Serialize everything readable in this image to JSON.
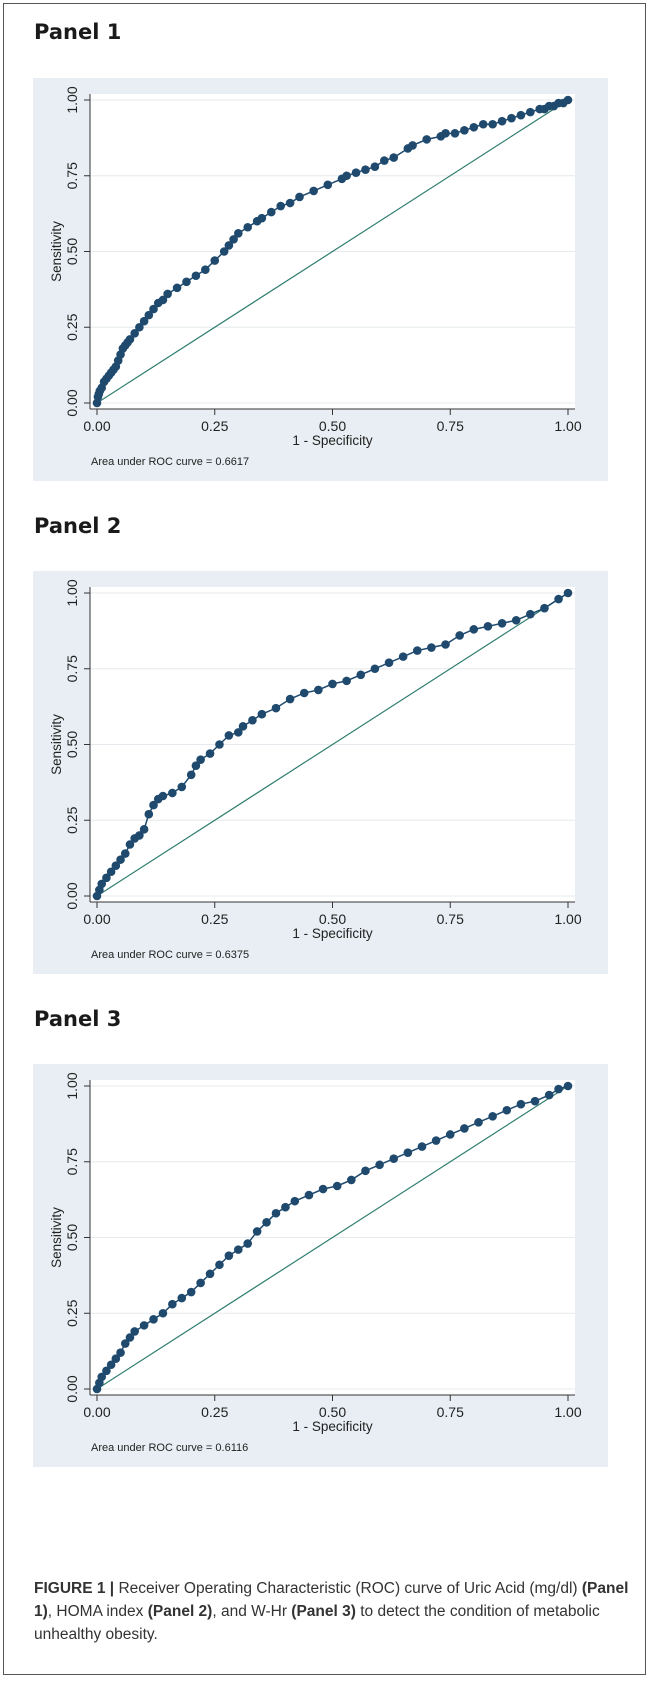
{
  "panels": [
    {
      "title": "Panel 1",
      "auc_label": "Area under ROC curve = 0.6617"
    },
    {
      "title": "Panel 2",
      "auc_label": "Area under ROC curve = 0.6375"
    },
    {
      "title": "Panel 3",
      "auc_label": "Area under ROC curve = 0.6116"
    }
  ],
  "caption": {
    "figure_label": "FIGURE 1 |",
    "text_1": " Receiver Operating Characteristic (ROC) curve of Uric Acid (mg/dl) ",
    "panel1": "(Panel 1)",
    "text_2": ", HOMA index ",
    "panel2": "(Panel 2)",
    "text_3": ", and W-Hr ",
    "panel3": "(Panel 3)",
    "text_4": " to detect the condition of metabolic unhealthy obesity."
  },
  "colors": {
    "curve": "#1f4a6e",
    "reference_line": "#2e7d6e",
    "plot_background": "#ffffff",
    "outer_background": "#e8eef3",
    "grid": "#e6eaee"
  },
  "chart_data": [
    {
      "type": "line",
      "xlabel": "1 - Specificity",
      "ylabel": "Sensitivity",
      "xlim": [
        0,
        1
      ],
      "ylim": [
        0,
        1
      ],
      "xticks": [
        "0.00",
        "0.25",
        "0.50",
        "0.75",
        "1.00"
      ],
      "yticks": [
        "0.00",
        "0.25",
        "0.50",
        "0.75",
        "1.00"
      ],
      "grid": true,
      "markers": true,
      "reference_line": true,
      "auc": 0.6617,
      "x": [
        0,
        0.002,
        0.004,
        0.006,
        0.01,
        0.015,
        0.02,
        0.025,
        0.03,
        0.035,
        0.04,
        0.045,
        0.05,
        0.055,
        0.06,
        0.065,
        0.07,
        0.08,
        0.09,
        0.1,
        0.11,
        0.12,
        0.13,
        0.14,
        0.15,
        0.17,
        0.19,
        0.21,
        0.23,
        0.25,
        0.27,
        0.28,
        0.29,
        0.3,
        0.32,
        0.34,
        0.35,
        0.37,
        0.39,
        0.41,
        0.43,
        0.46,
        0.49,
        0.52,
        0.53,
        0.55,
        0.57,
        0.59,
        0.61,
        0.63,
        0.66,
        0.67,
        0.7,
        0.73,
        0.74,
        0.76,
        0.78,
        0.8,
        0.82,
        0.84,
        0.86,
        0.88,
        0.9,
        0.92,
        0.94,
        0.95,
        0.96,
        0.97,
        0.98,
        0.99,
        1
      ],
      "y": [
        0,
        0.02,
        0.03,
        0.04,
        0.05,
        0.07,
        0.08,
        0.09,
        0.1,
        0.11,
        0.12,
        0.14,
        0.16,
        0.18,
        0.19,
        0.2,
        0.21,
        0.23,
        0.25,
        0.27,
        0.29,
        0.31,
        0.33,
        0.34,
        0.36,
        0.38,
        0.4,
        0.42,
        0.44,
        0.47,
        0.5,
        0.52,
        0.54,
        0.56,
        0.58,
        0.6,
        0.61,
        0.63,
        0.65,
        0.66,
        0.68,
        0.7,
        0.72,
        0.74,
        0.75,
        0.76,
        0.77,
        0.78,
        0.8,
        0.81,
        0.84,
        0.85,
        0.87,
        0.88,
        0.89,
        0.89,
        0.9,
        0.91,
        0.92,
        0.92,
        0.93,
        0.94,
        0.95,
        0.96,
        0.97,
        0.97,
        0.98,
        0.98,
        0.99,
        0.99,
        1
      ]
    },
    {
      "type": "line",
      "xlabel": "1 - Specificity",
      "ylabel": "Sensitivity",
      "xlim": [
        0,
        1
      ],
      "ylim": [
        0,
        1
      ],
      "xticks": [
        "0.00",
        "0.25",
        "0.50",
        "0.75",
        "1.00"
      ],
      "yticks": [
        "0.00",
        "0.25",
        "0.50",
        "0.75",
        "1.00"
      ],
      "grid": true,
      "markers": true,
      "reference_line": true,
      "auc": 0.6375,
      "x": [
        0,
        0.005,
        0.01,
        0.02,
        0.03,
        0.04,
        0.05,
        0.06,
        0.07,
        0.08,
        0.09,
        0.1,
        0.11,
        0.12,
        0.13,
        0.14,
        0.16,
        0.18,
        0.2,
        0.21,
        0.22,
        0.24,
        0.26,
        0.28,
        0.3,
        0.31,
        0.33,
        0.35,
        0.38,
        0.41,
        0.44,
        0.47,
        0.5,
        0.53,
        0.56,
        0.59,
        0.62,
        0.65,
        0.68,
        0.71,
        0.74,
        0.77,
        0.8,
        0.83,
        0.86,
        0.89,
        0.92,
        0.95,
        0.98,
        1
      ],
      "y": [
        0,
        0.02,
        0.04,
        0.06,
        0.08,
        0.1,
        0.12,
        0.14,
        0.17,
        0.19,
        0.2,
        0.22,
        0.27,
        0.3,
        0.32,
        0.33,
        0.34,
        0.36,
        0.4,
        0.43,
        0.45,
        0.47,
        0.5,
        0.53,
        0.54,
        0.56,
        0.58,
        0.6,
        0.62,
        0.65,
        0.67,
        0.68,
        0.7,
        0.71,
        0.73,
        0.75,
        0.77,
        0.79,
        0.81,
        0.82,
        0.83,
        0.86,
        0.88,
        0.89,
        0.9,
        0.91,
        0.93,
        0.95,
        0.98,
        1
      ]
    },
    {
      "type": "line",
      "xlabel": "1 - Specificity",
      "ylabel": "Sensitivity",
      "xlim": [
        0,
        1
      ],
      "ylim": [
        0,
        1
      ],
      "xticks": [
        "0.00",
        "0.25",
        "0.50",
        "0.75",
        "1.00"
      ],
      "yticks": [
        "0.00",
        "0.25",
        "0.50",
        "0.75",
        "1.00"
      ],
      "grid": true,
      "markers": true,
      "reference_line": true,
      "auc": 0.6116,
      "x": [
        0,
        0.005,
        0.01,
        0.02,
        0.03,
        0.04,
        0.05,
        0.06,
        0.07,
        0.08,
        0.1,
        0.12,
        0.14,
        0.16,
        0.18,
        0.2,
        0.22,
        0.24,
        0.26,
        0.28,
        0.3,
        0.32,
        0.34,
        0.36,
        0.38,
        0.4,
        0.42,
        0.45,
        0.48,
        0.51,
        0.54,
        0.57,
        0.6,
        0.63,
        0.66,
        0.69,
        0.72,
        0.75,
        0.78,
        0.81,
        0.84,
        0.87,
        0.9,
        0.93,
        0.96,
        0.98,
        1
      ],
      "y": [
        0,
        0.02,
        0.04,
        0.06,
        0.08,
        0.1,
        0.12,
        0.15,
        0.17,
        0.19,
        0.21,
        0.23,
        0.25,
        0.28,
        0.3,
        0.32,
        0.35,
        0.38,
        0.41,
        0.44,
        0.46,
        0.48,
        0.52,
        0.55,
        0.58,
        0.6,
        0.62,
        0.64,
        0.66,
        0.67,
        0.69,
        0.72,
        0.74,
        0.76,
        0.78,
        0.8,
        0.82,
        0.84,
        0.86,
        0.88,
        0.9,
        0.92,
        0.94,
        0.95,
        0.97,
        0.99,
        1
      ]
    }
  ]
}
